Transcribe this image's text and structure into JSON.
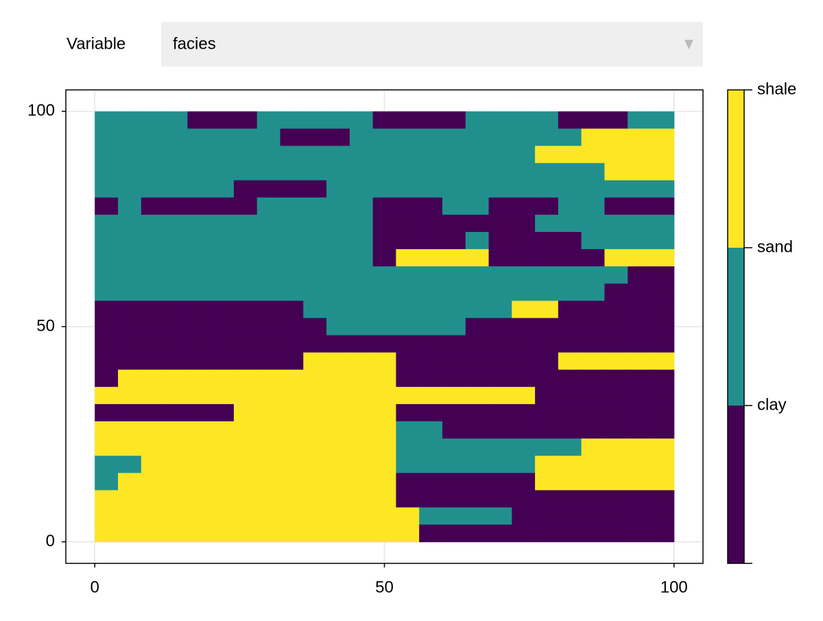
{
  "menu": {
    "label": "Variable",
    "selected": "facies"
  },
  "chart_data": {
    "type": "heatmap",
    "x": [
      2,
      6,
      10,
      14,
      18,
      22,
      26,
      30,
      34,
      38,
      42,
      46,
      50,
      54,
      58,
      62,
      66,
      70,
      74,
      78,
      82,
      86,
      90,
      94,
      98
    ],
    "y": [
      98,
      94,
      90,
      86,
      82,
      78,
      74,
      70,
      66,
      62,
      58,
      54,
      50,
      46,
      42,
      38,
      34,
      30,
      26,
      22,
      18,
      14,
      10,
      6,
      2
    ],
    "z": [
      [
        1,
        1,
        1,
        1,
        0,
        0,
        0,
        1,
        1,
        1,
        1,
        1,
        0,
        0,
        0,
        0,
        1,
        1,
        1,
        1,
        0,
        0,
        0,
        1,
        1
      ],
      [
        1,
        1,
        1,
        1,
        1,
        1,
        1,
        1,
        0,
        0,
        0,
        1,
        1,
        1,
        1,
        1,
        1,
        1,
        1,
        1,
        1,
        2,
        2,
        2,
        2
      ],
      [
        1,
        1,
        1,
        1,
        1,
        1,
        1,
        1,
        1,
        1,
        1,
        1,
        1,
        1,
        1,
        1,
        1,
        1,
        1,
        2,
        2,
        2,
        2,
        2,
        2
      ],
      [
        1,
        1,
        1,
        1,
        1,
        1,
        1,
        1,
        1,
        1,
        1,
        1,
        1,
        1,
        1,
        1,
        1,
        1,
        1,
        1,
        1,
        1,
        2,
        2,
        2
      ],
      [
        1,
        1,
        1,
        1,
        1,
        1,
        0,
        0,
        0,
        0,
        1,
        1,
        1,
        1,
        1,
        1,
        1,
        1,
        1,
        1,
        1,
        1,
        1,
        1,
        1
      ],
      [
        0,
        1,
        0,
        0,
        0,
        0,
        0,
        1,
        1,
        1,
        1,
        1,
        0,
        0,
        0,
        1,
        1,
        0,
        0,
        0,
        1,
        1,
        0,
        0,
        0
      ],
      [
        1,
        1,
        1,
        1,
        1,
        1,
        1,
        1,
        1,
        1,
        1,
        1,
        0,
        0,
        0,
        0,
        0,
        0,
        0,
        1,
        1,
        1,
        1,
        1,
        1
      ],
      [
        1,
        1,
        1,
        1,
        1,
        1,
        1,
        1,
        1,
        1,
        1,
        1,
        0,
        0,
        0,
        0,
        1,
        0,
        0,
        0,
        0,
        1,
        1,
        1,
        1
      ],
      [
        1,
        1,
        1,
        1,
        1,
        1,
        1,
        1,
        1,
        1,
        1,
        1,
        0,
        2,
        2,
        2,
        2,
        0,
        0,
        0,
        0,
        0,
        2,
        2,
        2
      ],
      [
        1,
        1,
        1,
        1,
        1,
        1,
        1,
        1,
        1,
        1,
        1,
        1,
        1,
        1,
        1,
        1,
        1,
        1,
        1,
        1,
        1,
        1,
        1,
        0,
        0
      ],
      [
        1,
        1,
        1,
        1,
        1,
        1,
        1,
        1,
        1,
        1,
        1,
        1,
        1,
        1,
        1,
        1,
        1,
        1,
        1,
        1,
        1,
        1,
        0,
        0,
        0
      ],
      [
        0,
        0,
        0,
        0,
        0,
        0,
        0,
        0,
        0,
        1,
        1,
        1,
        1,
        1,
        1,
        1,
        1,
        1,
        2,
        2,
        0,
        0,
        0,
        0,
        0
      ],
      [
        0,
        0,
        0,
        0,
        0,
        0,
        0,
        0,
        0,
        0,
        1,
        1,
        1,
        1,
        1,
        1,
        0,
        0,
        0,
        0,
        0,
        0,
        0,
        0,
        0
      ],
      [
        0,
        0,
        0,
        0,
        0,
        0,
        0,
        0,
        0,
        0,
        0,
        0,
        0,
        0,
        0,
        0,
        0,
        0,
        0,
        0,
        0,
        0,
        0,
        0,
        0
      ],
      [
        0,
        0,
        0,
        0,
        0,
        0,
        0,
        0,
        0,
        2,
        2,
        2,
        2,
        0,
        0,
        0,
        0,
        0,
        0,
        0,
        2,
        2,
        2,
        2,
        2
      ],
      [
        0,
        2,
        2,
        2,
        2,
        2,
        2,
        2,
        2,
        2,
        2,
        2,
        2,
        0,
        0,
        0,
        0,
        0,
        0,
        0,
        0,
        0,
        0,
        0,
        0
      ],
      [
        2,
        2,
        2,
        2,
        2,
        2,
        2,
        2,
        2,
        2,
        2,
        2,
        2,
        2,
        2,
        2,
        2,
        2,
        2,
        0,
        0,
        0,
        0,
        0,
        0
      ],
      [
        0,
        0,
        0,
        0,
        0,
        0,
        2,
        2,
        2,
        2,
        2,
        2,
        2,
        0,
        0,
        0,
        0,
        0,
        0,
        0,
        0,
        0,
        0,
        0,
        0
      ],
      [
        2,
        2,
        2,
        2,
        2,
        2,
        2,
        2,
        2,
        2,
        2,
        2,
        2,
        1,
        1,
        0,
        0,
        0,
        0,
        0,
        0,
        0,
        0,
        0,
        0
      ],
      [
        2,
        2,
        2,
        2,
        2,
        2,
        2,
        2,
        2,
        2,
        2,
        2,
        2,
        1,
        1,
        1,
        1,
        1,
        1,
        1,
        1,
        2,
        2,
        2,
        2
      ],
      [
        1,
        1,
        2,
        2,
        2,
        2,
        2,
        2,
        2,
        2,
        2,
        2,
        2,
        1,
        1,
        1,
        1,
        1,
        1,
        2,
        2,
        2,
        2,
        2,
        2
      ],
      [
        1,
        2,
        2,
        2,
        2,
        2,
        2,
        2,
        2,
        2,
        2,
        2,
        2,
        0,
        0,
        0,
        0,
        0,
        0,
        2,
        2,
        2,
        2,
        2,
        2
      ],
      [
        2,
        2,
        2,
        2,
        2,
        2,
        2,
        2,
        2,
        2,
        2,
        2,
        2,
        0,
        0,
        0,
        0,
        0,
        0,
        0,
        0,
        0,
        0,
        0,
        0
      ],
      [
        2,
        2,
        2,
        2,
        2,
        2,
        2,
        2,
        2,
        2,
        2,
        2,
        2,
        2,
        1,
        1,
        1,
        1,
        0,
        0,
        0,
        0,
        0,
        0,
        0
      ],
      [
        2,
        2,
        2,
        2,
        2,
        2,
        2,
        2,
        2,
        2,
        2,
        2,
        2,
        2,
        0,
        0,
        0,
        0,
        0,
        0,
        0,
        0,
        0,
        0,
        0
      ]
    ],
    "xlim": [
      -5,
      105
    ],
    "ylim": [
      -5,
      105
    ],
    "xticks": [
      0,
      50,
      100
    ],
    "yticks": [
      0,
      50,
      100
    ],
    "grid": true,
    "colorbar": {
      "limits": [
        0,
        3
      ],
      "colors": [
        "#440154",
        "#21908d",
        "#fde725"
      ],
      "ticks": [
        {
          "value": 1,
          "label": "clay"
        },
        {
          "value": 2,
          "label": "sand"
        },
        {
          "value": 3,
          "label": "shale"
        }
      ]
    }
  }
}
